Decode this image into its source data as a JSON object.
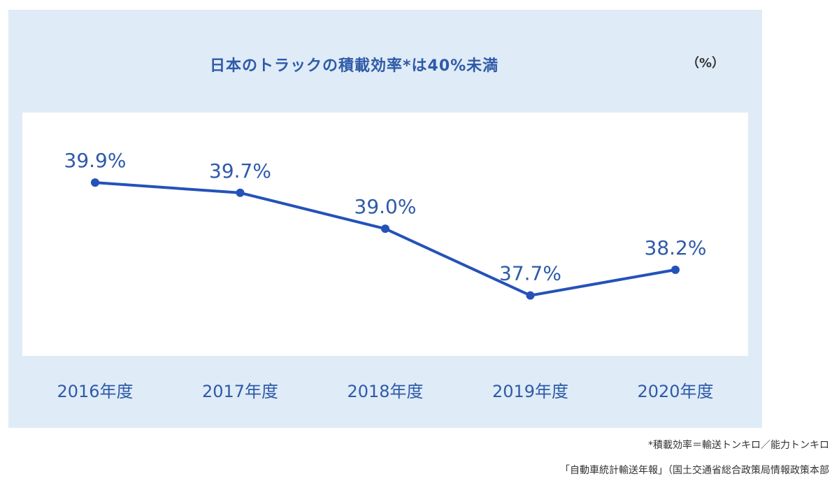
{
  "chart_data": {
    "type": "line",
    "title": "日本のトラックの積載効率*は40%未満",
    "unit": "（%）",
    "categories": [
      "2016年度",
      "2017年度",
      "2018年度",
      "2019年度",
      "2020年度"
    ],
    "values": [
      39.9,
      39.7,
      39.0,
      37.7,
      38.2
    ],
    "data_labels": [
      "39.9%",
      "39.7%",
      "39.0%",
      "37.7%",
      "38.2%"
    ],
    "ylim": [
      37.3,
      40.8
    ],
    "grid": false,
    "legend": "none",
    "line_color": "#2452b8",
    "label_color": "#2f5aa8",
    "background_color": "#dfecf7"
  },
  "footnotes": {
    "definition": "*積載効率＝輸送トンキロ／能力トンキロ",
    "source": "「自動車統計輸送年報」（国土交通省総合政策局情報政策本部"
  }
}
